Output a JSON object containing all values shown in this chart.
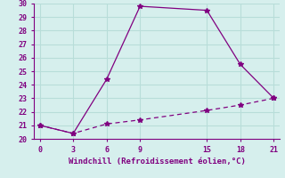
{
  "line1_x": [
    0,
    3,
    6,
    9,
    15,
    18,
    21
  ],
  "line1_y": [
    21,
    20.4,
    24.4,
    29.8,
    29.5,
    25.5,
    23
  ],
  "line2_x": [
    0,
    3,
    6,
    9,
    15,
    18,
    21
  ],
  "line2_y": [
    21,
    20.4,
    21.1,
    21.4,
    22.1,
    22.5,
    23
  ],
  "line_color": "#800080",
  "bg_color": "#d6efed",
  "grid_color": "#b8ddd9",
  "xlabel": "Windchill (Refroidissement éolien,°C)",
  "xlim": [
    -0.5,
    21.5
  ],
  "ylim": [
    20,
    30
  ],
  "xticks": [
    0,
    3,
    6,
    9,
    15,
    18,
    21
  ],
  "yticks": [
    20,
    21,
    22,
    23,
    24,
    25,
    26,
    27,
    28,
    29,
    30
  ],
  "marker": "*",
  "markersize": 4
}
